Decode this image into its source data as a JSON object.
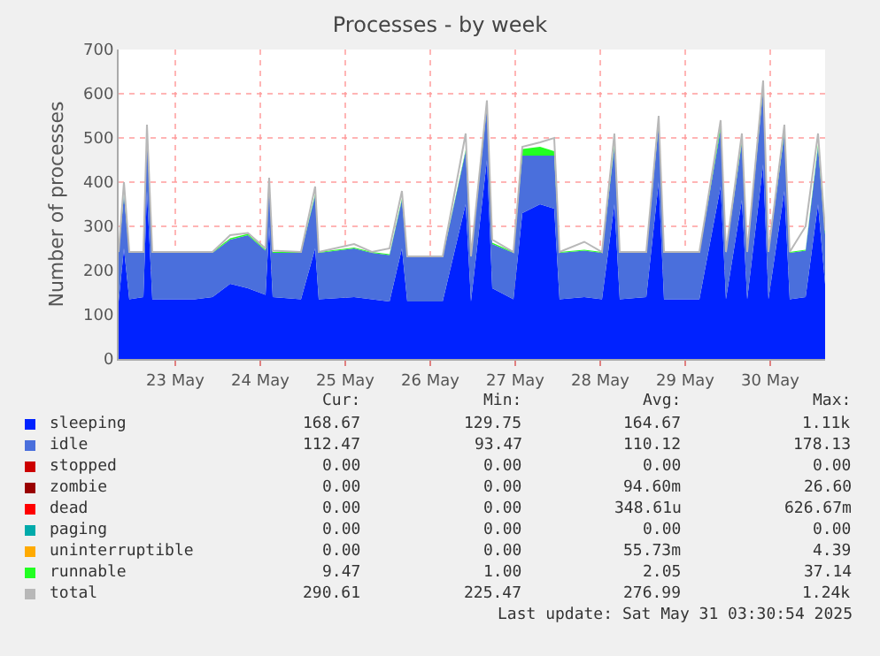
{
  "chart_data": {
    "type": "area",
    "title": "Processes - by week",
    "ylabel": "Number of processes",
    "stacked": true,
    "grid": true,
    "legend": "bottom",
    "x": [
      "2025-05-22T20:00",
      "2025-05-22T21:30",
      "2025-05-22T23:00",
      "2025-05-23T03:00",
      "2025-05-23T04:00",
      "2025-05-23T05:30",
      "2025-05-23T17:30",
      "2025-05-23T22:30",
      "2025-05-24T03:30",
      "2025-05-24T08:30",
      "2025-05-24T13:30",
      "2025-05-24T14:30",
      "2025-05-24T15:30",
      "2025-05-24T23:30",
      "2025-05-25T03:30",
      "2025-05-25T04:30",
      "2025-05-25T14:30",
      "2025-05-25T19:30",
      "2025-05-26T00:30",
      "2025-05-26T04:00",
      "2025-05-26T05:30",
      "2025-05-26T15:30",
      "2025-05-26T22:00",
      "2025-05-26T23:30",
      "2025-05-27T04:00",
      "2025-05-27T05:30",
      "2025-05-27T11:30",
      "2025-05-27T14:00",
      "2025-05-27T19:00",
      "2025-05-27T23:00",
      "2025-05-28T00:30",
      "2025-05-28T07:30",
      "2025-05-28T12:30",
      "2025-05-28T16:00",
      "2025-05-28T17:30",
      "2025-05-29T01:00",
      "2025-05-29T04:30",
      "2025-05-29T06:00",
      "2025-05-29T16:00",
      "2025-05-29T22:00",
      "2025-05-29T23:30",
      "2025-05-30T04:00",
      "2025-05-30T05:30",
      "2025-05-30T10:00",
      "2025-05-30T11:30",
      "2025-05-30T16:00",
      "2025-05-30T17:30",
      "2025-05-30T22:00",
      "2025-05-31T01:30",
      "2025-05-31T03:30"
    ],
    "series": [
      {
        "name": "sleeping",
        "color": "#0022ff",
        "values": [
          130,
          250,
          135,
          140,
          380,
          135,
          135,
          140,
          170,
          160,
          145,
          300,
          140,
          135,
          250,
          135,
          140,
          135,
          130,
          250,
          130,
          130,
          350,
          130,
          450,
          160,
          135,
          330,
          350,
          340,
          135,
          140,
          135,
          350,
          135,
          140,
          400,
          135,
          135,
          390,
          135,
          360,
          135,
          440,
          135,
          380,
          135,
          140,
          350,
          169
        ]
      },
      {
        "name": "idle",
        "color": "#4a6fdc",
        "values": [
          110,
          120,
          105,
          100,
          130,
          105,
          105,
          100,
          100,
          120,
          100,
          100,
          100,
          105,
          120,
          105,
          110,
          105,
          105,
          110,
          100,
          100,
          120,
          100,
          120,
          100,
          105,
          130,
          110,
          120,
          105,
          105,
          105,
          130,
          105,
          100,
          130,
          105,
          105,
          130,
          105,
          130,
          105,
          170,
          105,
          130,
          105,
          105,
          130,
          112
        ]
      },
      {
        "name": "stopped",
        "color": "#cc0000",
        "values": [
          null,
          null,
          null,
          null,
          null,
          null,
          null,
          null,
          null,
          null,
          null,
          null,
          null,
          null,
          null,
          null,
          null,
          null,
          null,
          null,
          null,
          null,
          null,
          null,
          null,
          null,
          null,
          null,
          null,
          null,
          null,
          null,
          null,
          null,
          null,
          null,
          null,
          null,
          null,
          null,
          null,
          null,
          null,
          null,
          null,
          null,
          null,
          null,
          null,
          null
        ]
      },
      {
        "name": "zombie",
        "color": "#990000",
        "values": [
          null,
          null,
          null,
          null,
          null,
          null,
          null,
          null,
          null,
          null,
          null,
          null,
          null,
          null,
          null,
          null,
          null,
          null,
          null,
          null,
          null,
          null,
          null,
          null,
          null,
          null,
          null,
          null,
          null,
          null,
          null,
          null,
          null,
          null,
          null,
          null,
          null,
          null,
          null,
          null,
          null,
          null,
          null,
          null,
          null,
          null,
          null,
          null,
          null,
          null
        ]
      },
      {
        "name": "dead",
        "color": "#ff0000",
        "values": [
          null,
          null,
          null,
          null,
          null,
          null,
          null,
          null,
          null,
          null,
          null,
          null,
          null,
          null,
          null,
          null,
          null,
          null,
          null,
          null,
          null,
          null,
          null,
          null,
          null,
          null,
          null,
          null,
          null,
          null,
          null,
          null,
          null,
          null,
          null,
          null,
          null,
          null,
          null,
          null,
          null,
          null,
          null,
          null,
          null,
          null,
          null,
          null,
          null,
          null
        ]
      },
      {
        "name": "paging",
        "color": "#00aaaa",
        "values": [
          null,
          null,
          null,
          null,
          null,
          null,
          null,
          null,
          null,
          null,
          null,
          null,
          null,
          null,
          null,
          null,
          null,
          null,
          null,
          null,
          null,
          null,
          null,
          null,
          null,
          null,
          null,
          null,
          null,
          null,
          null,
          null,
          null,
          null,
          null,
          null,
          null,
          null,
          null,
          null,
          null,
          null,
          null,
          null,
          null,
          null,
          null,
          null,
          null,
          null
        ]
      },
      {
        "name": "uninterruptible",
        "color": "#ffaa00",
        "values": [
          null,
          null,
          null,
          null,
          null,
          null,
          null,
          null,
          null,
          null,
          null,
          null,
          null,
          null,
          null,
          null,
          null,
          null,
          null,
          null,
          null,
          null,
          null,
          null,
          null,
          null,
          null,
          null,
          null,
          null,
          null,
          null,
          null,
          null,
          null,
          null,
          null,
          null,
          null,
          null,
          null,
          null,
          null,
          null,
          null,
          null,
          null,
          null,
          null,
          null
        ]
      },
      {
        "name": "runnable",
        "color": "#22ff22",
        "values": [
          2,
          3,
          2,
          2,
          5,
          2,
          2,
          2,
          3,
          3,
          2,
          3,
          2,
          2,
          3,
          2,
          2,
          2,
          2,
          3,
          2,
          2,
          3,
          2,
          5,
          3,
          2,
          15,
          20,
          10,
          2,
          2,
          2,
          5,
          2,
          2,
          5,
          2,
          2,
          10,
          2,
          5,
          2,
          5,
          2,
          5,
          2,
          2,
          5,
          9
        ]
      },
      {
        "name": "total",
        "type": "line",
        "color": "#b8b8b8",
        "values": [
          242,
          400,
          242,
          242,
          530,
          242,
          242,
          242,
          280,
          285,
          250,
          410,
          245,
          242,
          390,
          242,
          260,
          242,
          250,
          380,
          232,
          232,
          510,
          232,
          585,
          270,
          242,
          480,
          490,
          500,
          242,
          265,
          242,
          510,
          242,
          242,
          550,
          242,
          242,
          540,
          242,
          510,
          242,
          630,
          242,
          530,
          242,
          300,
          510,
          291
        ]
      }
    ],
    "xlim": [
      "2025-05-22T20:00",
      "2025-05-31T03:30"
    ],
    "xticks": [
      {
        "value": "2025-05-23T12:00",
        "label": "23 May"
      },
      {
        "value": "2025-05-24T12:00",
        "label": "24 May"
      },
      {
        "value": "2025-05-25T12:00",
        "label": "25 May"
      },
      {
        "value": "2025-05-26T12:00",
        "label": "26 May"
      },
      {
        "value": "2025-05-27T12:00",
        "label": "27 May"
      },
      {
        "value": "2025-05-28T12:00",
        "label": "28 May"
      },
      {
        "value": "2025-05-29T12:00",
        "label": "29 May"
      },
      {
        "value": "2025-05-30T12:00",
        "label": "30 May"
      }
    ],
    "ylim": [
      0,
      700
    ],
    "yticks": [
      0,
      100,
      200,
      300,
      400,
      500,
      600,
      700
    ],
    "annotations": [
      "Cur:",
      "Min:",
      "Avg:",
      "Max:",
      "168.67",
      "129.75",
      "164.67",
      "1.11k",
      "112.47",
      "93.47",
      "110.12",
      "178.13",
      "0.00",
      "0.00",
      "0.00",
      "0.00",
      "0.00",
      "0.00",
      "94.60m",
      "26.60",
      "0.00",
      "0.00",
      "348.61u",
      "626.67m",
      "0.00",
      "0.00",
      "0.00",
      "0.00",
      "0.00",
      "0.00",
      "55.73m",
      "4.39",
      "9.47",
      "1.00",
      "2.05",
      "37.14",
      "290.61",
      "225.47",
      "276.99",
      "1.24k",
      "Last update: Sat May 31 03:30:54 2025"
    ]
  }
}
